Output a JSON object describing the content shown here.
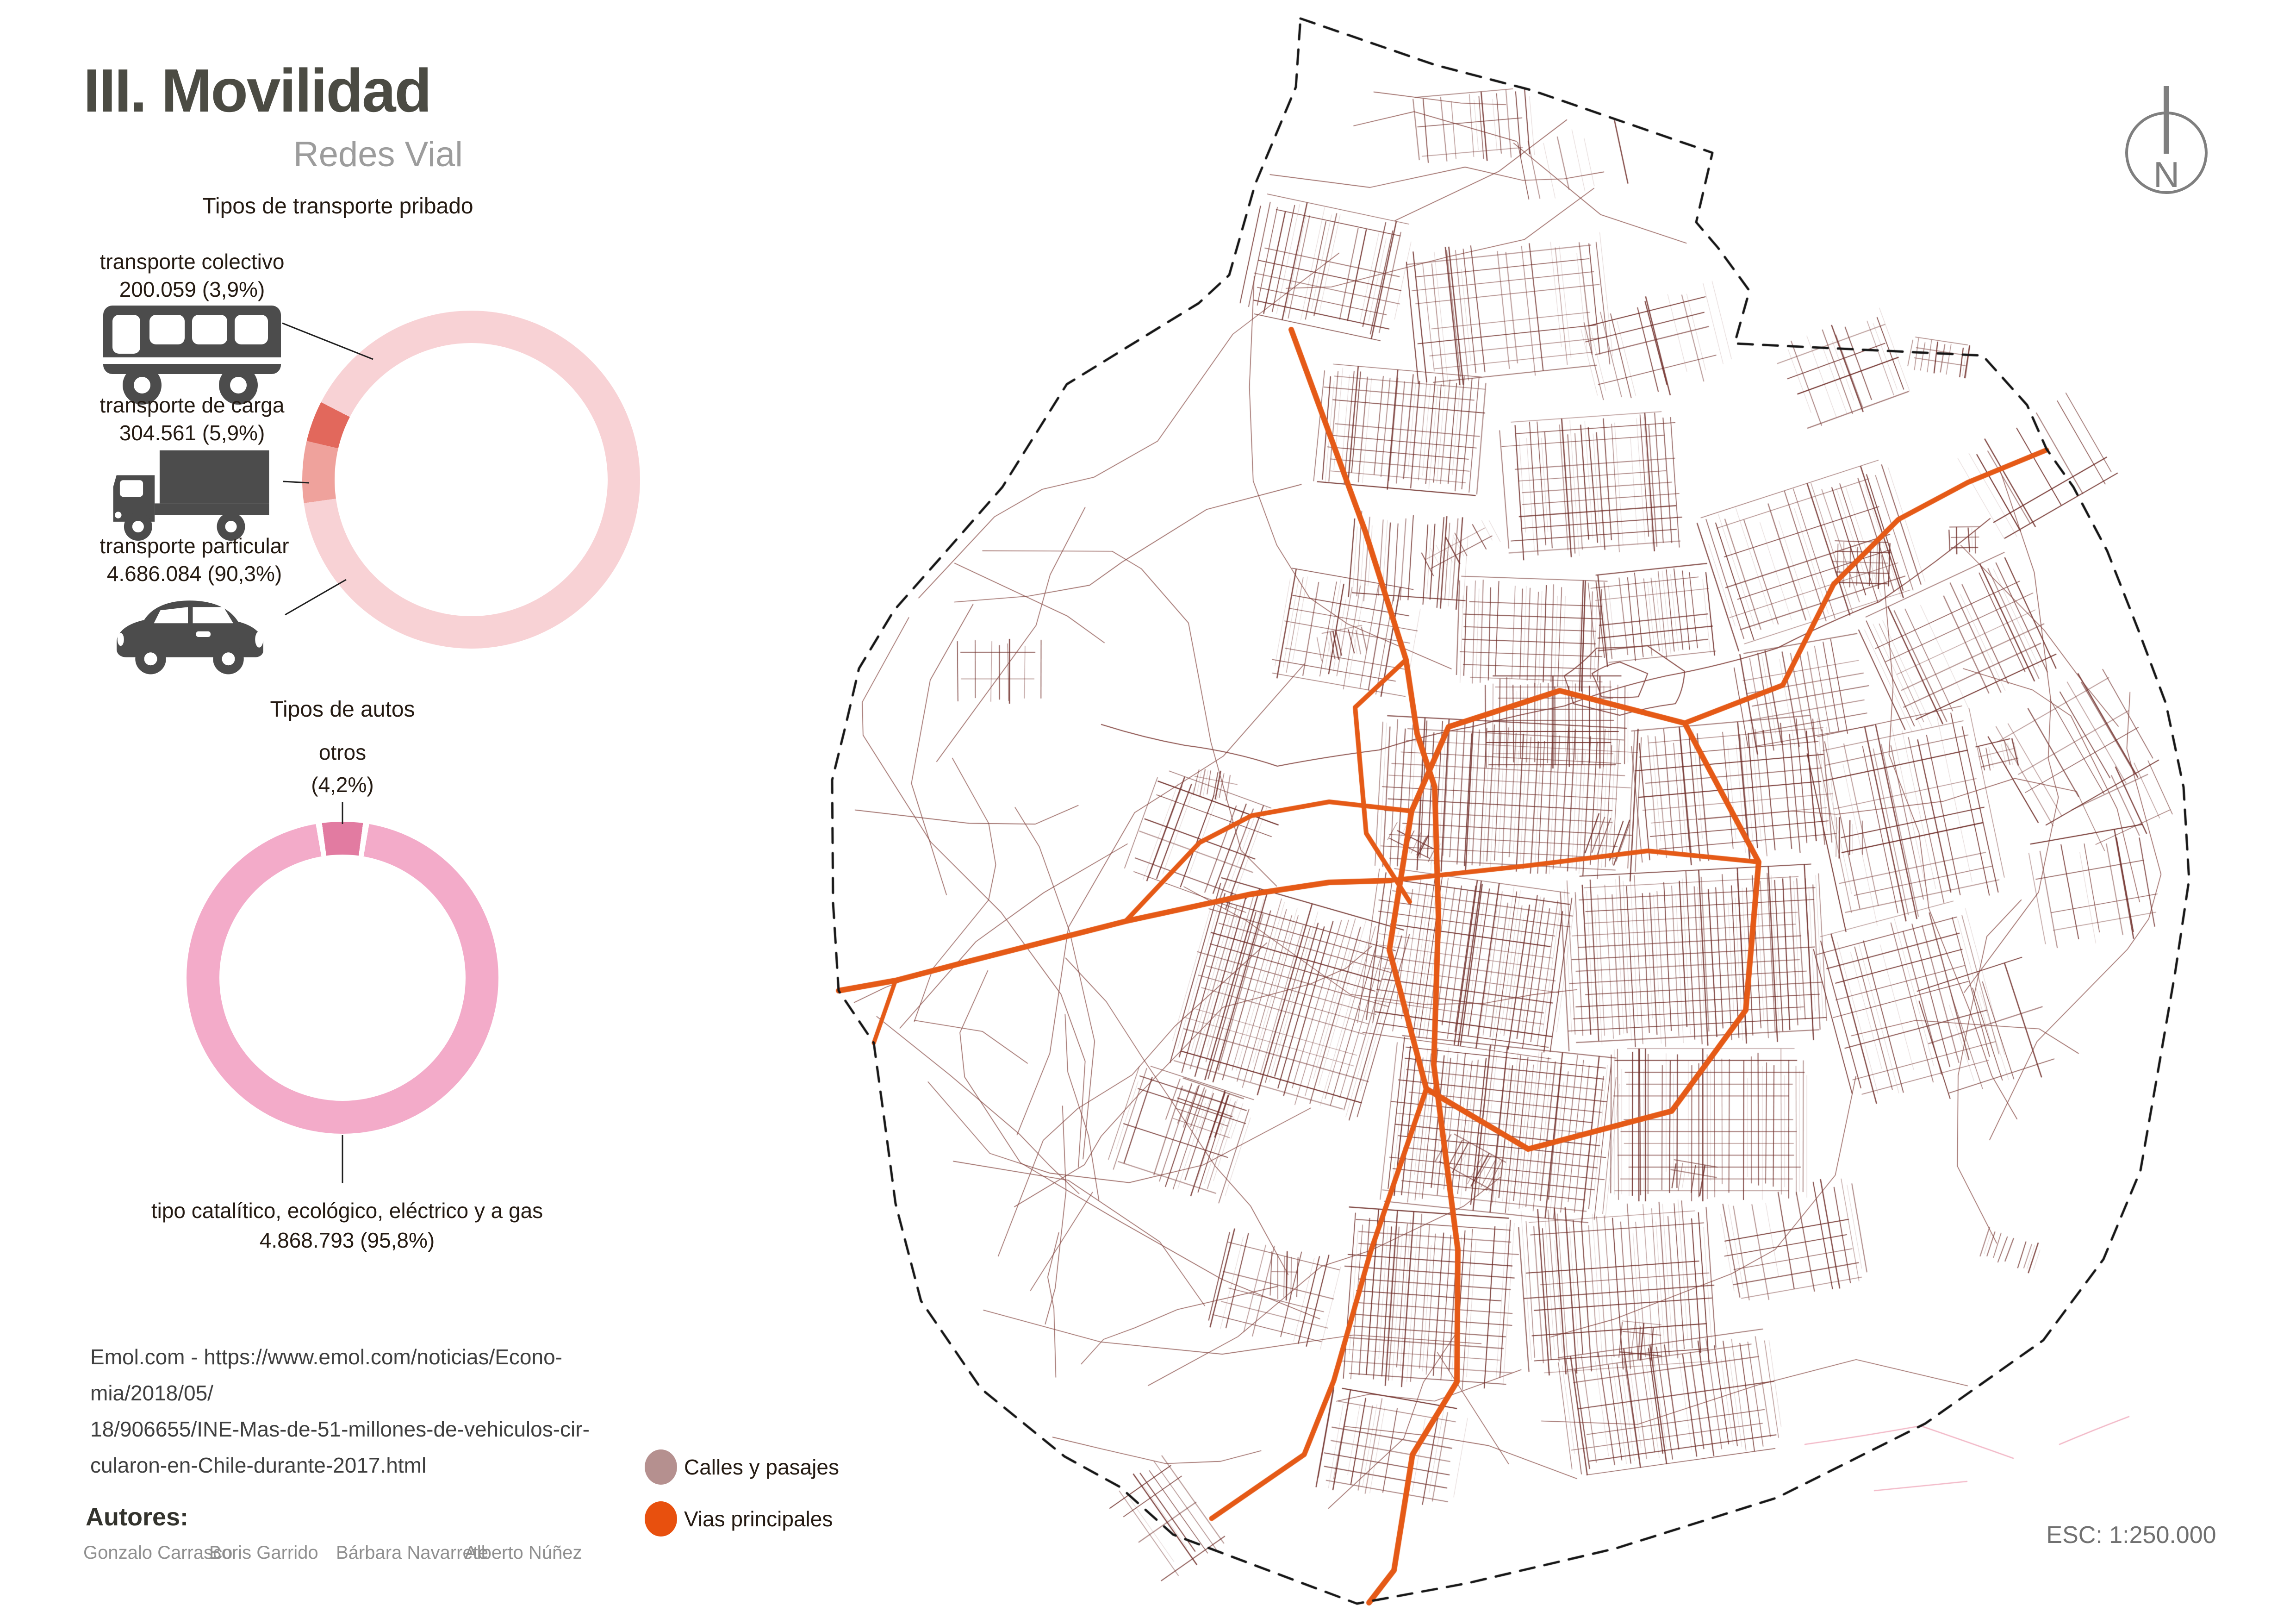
{
  "header": {
    "title": "III. Movilidad",
    "subtitle": "Redes Vial"
  },
  "chart_data": [
    {
      "type": "pie",
      "variant": "donut",
      "title": "Tipos de transporte pribado",
      "series": [
        {
          "label": "transporte colectivo",
          "value": 200059,
          "value_label": "200.059 (3,9%)",
          "pct": 3.9,
          "color": "#e2685c",
          "icon": "bus-icon"
        },
        {
          "label": "transporte de carga",
          "value": 304561,
          "value_label": "304.561 (5,9%)",
          "pct": 5.9,
          "color": "#efa29c",
          "icon": "truck-icon"
        },
        {
          "label": "transporte particular",
          "value": 4686084,
          "value_label": "4.686.084 (90,3%)",
          "pct": 90.3,
          "color": "#f8d2d5",
          "icon": "car-icon"
        }
      ]
    },
    {
      "type": "pie",
      "variant": "donut",
      "title": "Tipos de autos",
      "series": [
        {
          "label": "otros",
          "value_label": "(4,2%)",
          "pct": 4.2,
          "color": "#e27ba1"
        },
        {
          "label": "tipo catalítico, ecológico, eléctrico y a gas",
          "value": 4868793,
          "value_label": "4.868.793 (95,8%)",
          "pct": 95.8,
          "color": "#f3abc9"
        }
      ]
    }
  ],
  "source": {
    "lines": [
      "Emol.com -    https://www.emol.com/noticias/Econo-",
      "mia/2018/05/",
      "18/906655/INE-Mas-de-51-millones-de-vehiculos-cir-",
      "cularon-en-Chile-durante-2017.html"
    ]
  },
  "authors": {
    "heading": "Autores:",
    "names": [
      "Gonzalo Carrasco",
      "Boris Garrido",
      "Bárbara Navarrete",
      "Alberto Núñez"
    ]
  },
  "legend": {
    "items": [
      {
        "label": "Calles y pasajes",
        "color": "#b5908f"
      },
      {
        "label": "Vias principales",
        "color": "#e8500e"
      }
    ]
  },
  "scale_text": "ESC: 1:250.000",
  "north_label": "N",
  "map": {
    "street_color": "#6e2d28",
    "rural_color": "#7e3d37",
    "main_road_color": "#e55a17",
    "boundary_color": "#161616",
    "accent_pink": "#f2b7c6",
    "boundary": [
      [
        2810,
        40
      ],
      [
        3100,
        140
      ],
      [
        3310,
        195
      ],
      [
        3700,
        330
      ],
      [
        3665,
        480
      ],
      [
        3712,
        535
      ],
      [
        3780,
        628
      ],
      [
        3748,
        742
      ],
      [
        4284,
        768
      ],
      [
        4380,
        875
      ],
      [
        4422,
        970
      ],
      [
        4480,
        1052
      ],
      [
        4553,
        1190
      ],
      [
        4620,
        1360
      ],
      [
        4680,
        1520
      ],
      [
        4718,
        1700
      ],
      [
        4730,
        1900
      ],
      [
        4700,
        2100
      ],
      [
        4660,
        2330
      ],
      [
        4625,
        2528
      ],
      [
        4545,
        2720
      ],
      [
        4415,
        2895
      ],
      [
        4160,
        3075
      ],
      [
        3840,
        3235
      ],
      [
        3490,
        3345
      ],
      [
        3170,
        3420
      ],
      [
        2932,
        3464
      ],
      [
        2535,
        3315
      ],
      [
        2420,
        3212
      ],
      [
        2300,
        3146
      ],
      [
        2120,
        3000
      ],
      [
        1990,
        2810
      ],
      [
        1935,
        2600
      ],
      [
        1911,
        2420
      ],
      [
        1888,
        2253
      ],
      [
        1812,
        2140
      ],
      [
        1800,
        1950
      ],
      [
        1798,
        1685
      ],
      [
        1827,
        1568
      ],
      [
        1856,
        1444
      ],
      [
        1932,
        1318
      ],
      [
        2032,
        1205
      ],
      [
        2166,
        1052
      ],
      [
        2305,
        830
      ],
      [
        2590,
        655
      ],
      [
        2656,
        594
      ],
      [
        2712,
        398
      ],
      [
        2800,
        188
      ]
    ],
    "main_roads": [
      {
        "w": 12,
        "pts": [
          [
            2790,
            712
          ],
          [
            2950,
            1148
          ],
          [
            3038,
            1425
          ],
          [
            3062,
            1585
          ],
          [
            3100,
            1700
          ],
          [
            3108,
            1980
          ],
          [
            3098,
            2300
          ],
          [
            3150,
            2700
          ],
          [
            3148,
            2985
          ],
          [
            3052,
            3142
          ],
          [
            3012,
            3392
          ],
          [
            2958,
            3462
          ]
        ]
      },
      {
        "w": 10,
        "pts": [
          [
            3038,
            1425
          ],
          [
            2928,
            1528
          ],
          [
            2952,
            1800
          ],
          [
            3046,
            1948
          ]
        ]
      },
      {
        "w": 12,
        "pts": [
          [
            3130,
            1570
          ],
          [
            3370,
            1492
          ],
          [
            3640,
            1562
          ],
          [
            3800,
            1862
          ],
          [
            3772,
            2182
          ],
          [
            3612,
            2400
          ],
          [
            3302,
            2482
          ],
          [
            3082,
            2352
          ],
          [
            3002,
            2052
          ],
          [
            3050,
            1752
          ],
          [
            3130,
            1570
          ]
        ]
      },
      {
        "w": 12,
        "pts": [
          [
            1812,
            2140
          ],
          [
            1935,
            2118
          ],
          [
            2072,
            2082
          ],
          [
            2432,
            1990
          ],
          [
            2700,
            1932
          ],
          [
            2872,
            1906
          ],
          [
            3004,
            1902
          ]
        ]
      },
      {
        "w": 10,
        "pts": [
          [
            3004,
            1902
          ],
          [
            3300,
            1870
          ],
          [
            3560,
            1838
          ],
          [
            3800,
            1862
          ]
        ]
      },
      {
        "w": 10,
        "pts": [
          [
            2432,
            1990
          ],
          [
            2592,
            1820
          ],
          [
            2704,
            1762
          ],
          [
            2872,
            1732
          ],
          [
            3050,
            1752
          ]
        ]
      },
      {
        "w": 9,
        "pts": [
          [
            1888,
            2253
          ],
          [
            1935,
            2118
          ]
        ]
      },
      {
        "w": 11,
        "pts": [
          [
            3640,
            1562
          ],
          [
            3852,
            1480
          ],
          [
            3962,
            1262
          ],
          [
            4102,
            1122
          ],
          [
            4252,
            1042
          ],
          [
            4422,
            972
          ]
        ]
      },
      {
        "w": 11,
        "pts": [
          [
            3082,
            2352
          ],
          [
            2962,
            2702
          ],
          [
            2882,
            2982
          ],
          [
            2818,
            3142
          ],
          [
            2618,
            3280
          ]
        ]
      }
    ]
  }
}
